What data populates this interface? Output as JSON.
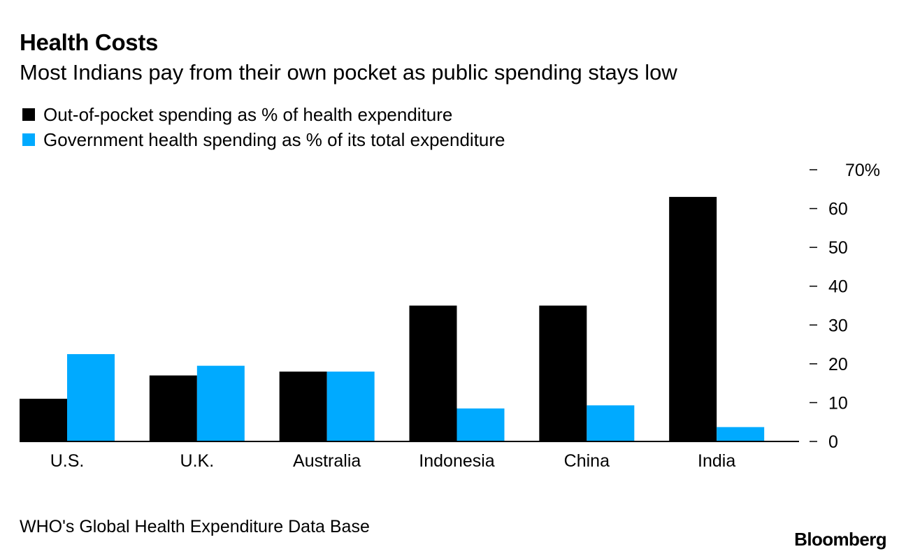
{
  "header": {
    "title": "Health Costs",
    "subtitle": "Most Indians pay from their own pocket as public spending stays low"
  },
  "footer": {
    "source": "WHO's Global Health Expenditure Data Base",
    "logo": "Bloomberg"
  },
  "colors": {
    "out_of_pocket": "#000000",
    "government": "#00aaff",
    "axis": "#000000"
  },
  "chart_data": {
    "type": "bar",
    "title": "Health Costs",
    "subtitle": "Most Indians pay from their own pocket as public spending stays low",
    "categories": [
      "U.S.",
      "U.K.",
      "Australia",
      "Indonesia",
      "China",
      "India"
    ],
    "series": [
      {
        "name": "Out-of-pocket spending as % of health expenditure",
        "color": "#000000",
        "values": [
          11,
          17,
          18,
          35,
          35,
          63
        ]
      },
      {
        "name": "Government health spending as % of its total expenditure",
        "color": "#00aaff",
        "values": [
          22.5,
          19.5,
          18,
          8.5,
          9.3,
          3.7
        ]
      }
    ],
    "ylim": [
      0,
      70
    ],
    "yticks": [
      0,
      10,
      20,
      30,
      40,
      50,
      60,
      70
    ],
    "ytick_labels": [
      "0",
      "10",
      "20",
      "30",
      "40",
      "50",
      "60",
      "70%"
    ],
    "y_axis_side": "right",
    "grid": false,
    "legend_position": "top-left",
    "xlabel": "",
    "ylabel": ""
  }
}
